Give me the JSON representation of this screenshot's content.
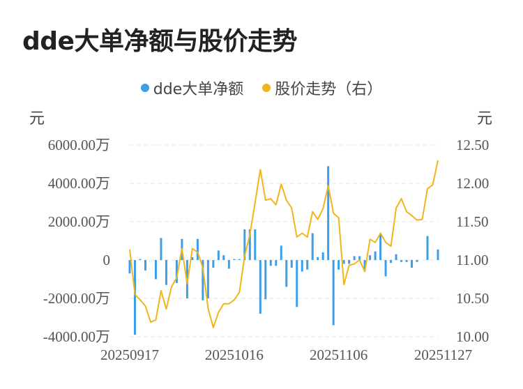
{
  "title": "dde大单净额与股价走势",
  "legend": {
    "series1": "dde大单净额",
    "series2": "股价走势（右）",
    "series1_color": "#3d9ee8",
    "series2_color": "#f2b41c"
  },
  "chart_data": {
    "type": "bar+line",
    "left_axis_unit": "元",
    "right_axis_unit": "元",
    "left_ticks": [
      "6000.00万",
      "4000.00万",
      "2000.00万",
      "0",
      "-2000.00万",
      "-4000.00万"
    ],
    "right_ticks": [
      "12.50",
      "12.00",
      "11.50",
      "11.00",
      "10.50",
      "10.00"
    ],
    "x_ticks": [
      "20250917",
      "20251016",
      "20251106",
      "20251127"
    ],
    "x_tick_index": [
      0,
      20,
      40,
      60
    ],
    "left_ylim": [
      -4000,
      6000
    ],
    "right_ylim": [
      10.0,
      12.5
    ],
    "grid": true,
    "series": [
      {
        "name": "dde大单净额",
        "type": "bar",
        "axis": "left",
        "values": [
          -700,
          -3900,
          50,
          -550,
          0,
          -1000,
          1150,
          -1300,
          0,
          -1200,
          1100,
          -2000,
          150,
          1100,
          -2100,
          -2000,
          -400,
          500,
          250,
          -450,
          50,
          50,
          1600,
          1600,
          1600,
          -2800,
          -2050,
          -300,
          -300,
          750,
          -1400,
          -400,
          -2450,
          -600,
          -500,
          1400,
          150,
          400,
          4900,
          -3400,
          -500,
          -200,
          -200,
          200,
          200,
          -550,
          250,
          450,
          1350,
          -850,
          -150,
          300,
          -100,
          -100,
          -400,
          -100,
          0,
          1250,
          0,
          550
        ],
        "color": "#3d9ee8"
      },
      {
        "name": "股价走势（右）",
        "type": "line",
        "axis": "right",
        "values": [
          11.14,
          10.55,
          10.48,
          10.4,
          10.19,
          10.22,
          10.6,
          10.36,
          10.65,
          10.77,
          11.15,
          10.69,
          11.15,
          11.1,
          10.9,
          10.37,
          10.12,
          10.32,
          10.43,
          10.43,
          10.48,
          10.58,
          11.05,
          11.33,
          11.75,
          12.18,
          11.78,
          11.8,
          11.72,
          11.99,
          11.78,
          11.68,
          11.3,
          11.35,
          11.3,
          11.63,
          11.53,
          11.67,
          11.97,
          11.61,
          11.55,
          10.68,
          10.93,
          10.95,
          11.0,
          10.85,
          11.27,
          11.23,
          11.35,
          11.23,
          11.18,
          11.68,
          11.8,
          11.63,
          11.58,
          11.52,
          11.53,
          11.93,
          11.98,
          12.3
        ],
        "color": "#f2b41c"
      }
    ]
  }
}
